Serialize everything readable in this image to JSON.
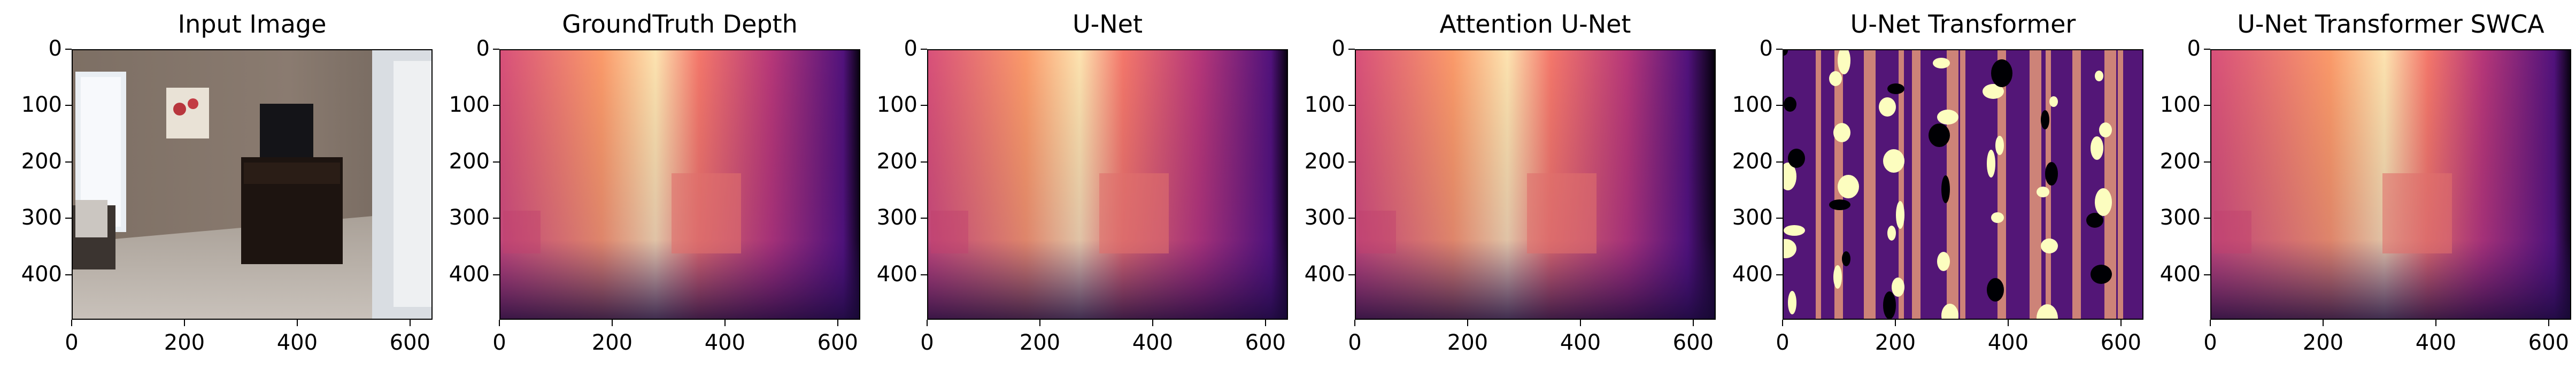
{
  "panels": [
    {
      "title": "Input Image"
    },
    {
      "title": "GroundTruth Depth"
    },
    {
      "title": "U-Net"
    },
    {
      "title": "Attention U-Net"
    },
    {
      "title": "U-Net Transformer"
    },
    {
      "title": "U-Net Transformer SWCA"
    }
  ],
  "axes": {
    "y_ticks": [
      "0",
      "100",
      "200",
      "300",
      "400"
    ],
    "x_ticks": [
      "0",
      "200",
      "400",
      "600"
    ]
  },
  "colors": {
    "magma_bright": "#fcfdbf",
    "magma_orange": "#f7845e",
    "magma_purple": "#721f81",
    "magma_dark": "#000004"
  }
}
